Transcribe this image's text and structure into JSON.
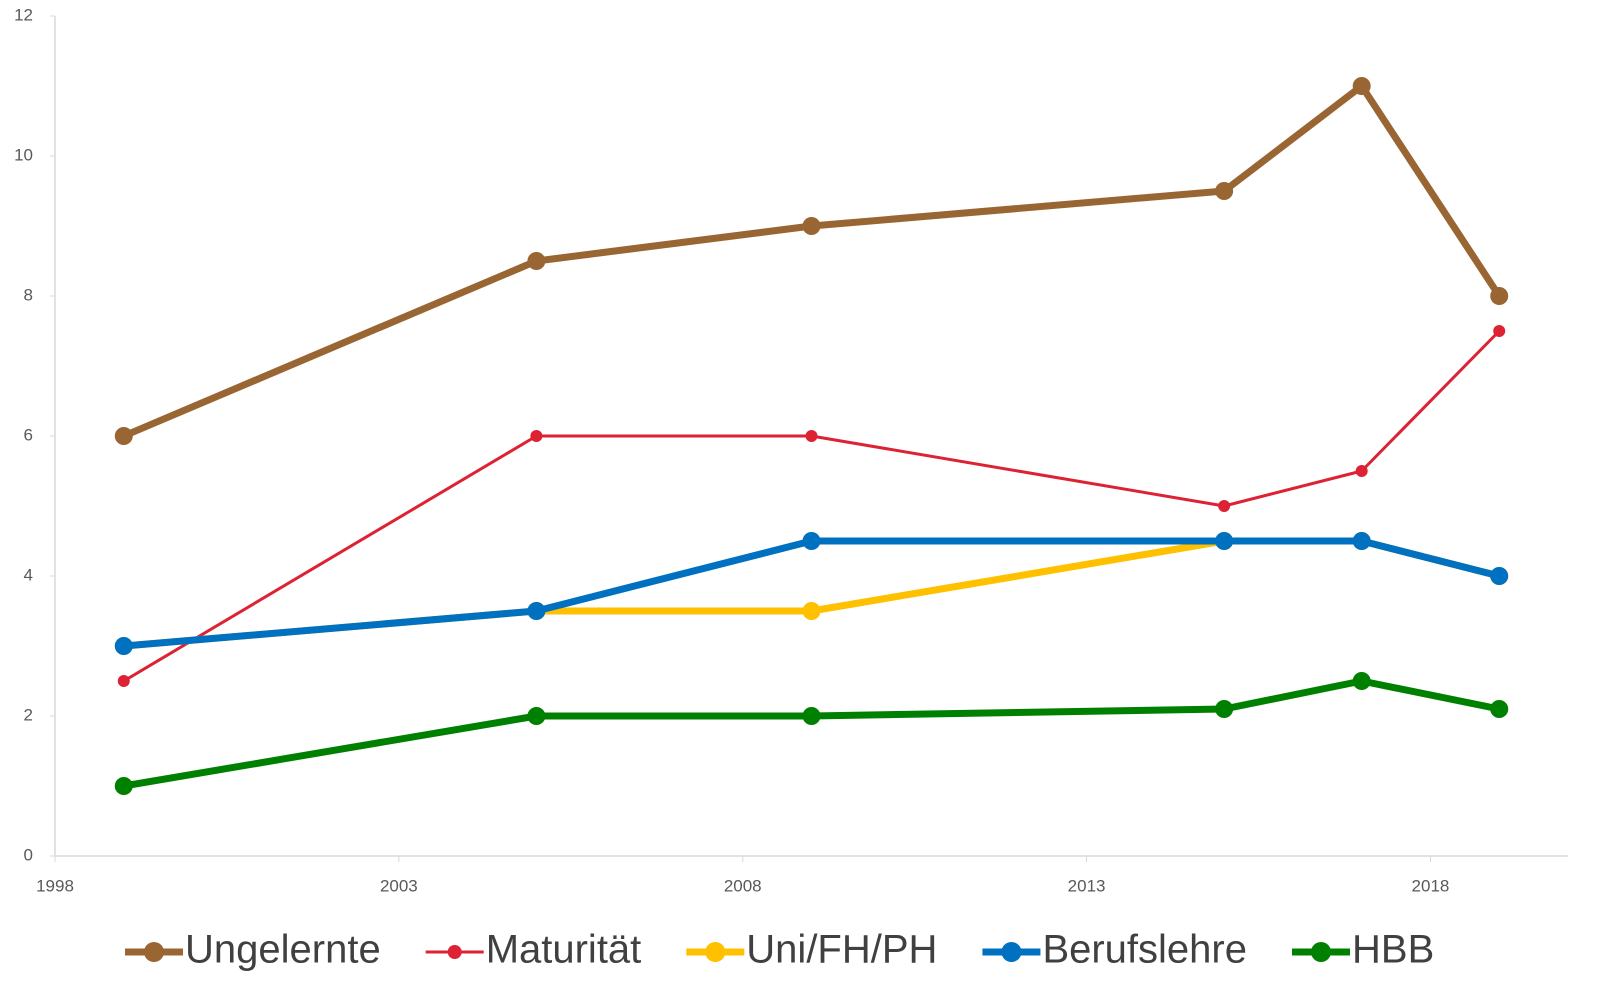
{
  "chart_data": {
    "type": "line",
    "x": [
      1999,
      2005,
      2009,
      2015,
      2017,
      2019
    ],
    "series": [
      {
        "name": "Ungelernte",
        "color": "#996633",
        "values": [
          6,
          8.5,
          9,
          9.5,
          11,
          8
        ]
      },
      {
        "name": "Maturität",
        "color": "#dd2233",
        "values": [
          2.5,
          6,
          6,
          5,
          5.5,
          7.5
        ]
      },
      {
        "name": "Uni/FH/PH",
        "color": "#ffc000",
        "values": [
          3,
          3.5,
          3.5,
          4.5,
          4.5,
          4
        ]
      },
      {
        "name": "Berufslehre",
        "color": "#0070c0",
        "values": [
          3,
          3.5,
          4.5,
          4.5,
          4.5,
          4
        ]
      },
      {
        "name": "HBB",
        "color": "#008000",
        "values": [
          1,
          2,
          2,
          2.1,
          2.5,
          2.1
        ]
      }
    ],
    "xlim": [
      1998,
      2020
    ],
    "xticks": [
      1998,
      2003,
      2008,
      2013,
      2018
    ],
    "ylim": [
      0,
      12
    ],
    "yticks": [
      0,
      2,
      4,
      6,
      8,
      10,
      12
    ],
    "grid": false,
    "legend": "bottom"
  }
}
